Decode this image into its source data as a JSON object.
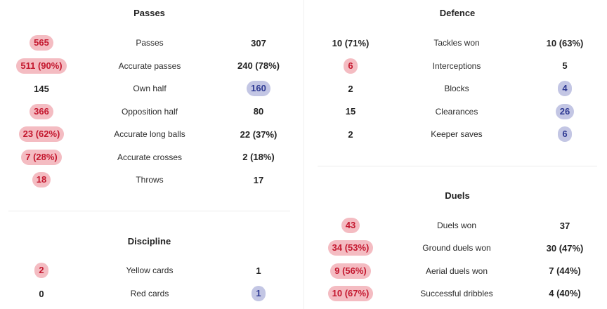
{
  "colors": {
    "home_pill_bg": "#f4bcc2",
    "home_pill_text": "#c4182f",
    "away_pill_bg": "#c3c6e4",
    "away_pill_text": "#2f3a93"
  },
  "passes": {
    "title": "Passes",
    "rows": [
      {
        "label": "Passes",
        "home": "565",
        "away": "307",
        "winner": "home"
      },
      {
        "label": "Accurate passes",
        "home": "511 (90%)",
        "away": "240 (78%)",
        "winner": "home"
      },
      {
        "label": "Own half",
        "home": "145",
        "away": "160",
        "winner": "away"
      },
      {
        "label": "Opposition half",
        "home": "366",
        "away": "80",
        "winner": "home"
      },
      {
        "label": "Accurate long balls",
        "home": "23 (62%)",
        "away": "22 (37%)",
        "winner": "home"
      },
      {
        "label": "Accurate crosses",
        "home": "7 (28%)",
        "away": "2 (18%)",
        "winner": "home"
      },
      {
        "label": "Throws",
        "home": "18",
        "away": "17",
        "winner": "home"
      }
    ]
  },
  "discipline": {
    "title": "Discipline",
    "rows": [
      {
        "label": "Yellow cards",
        "home": "2",
        "away": "1",
        "winner": "home"
      },
      {
        "label": "Red cards",
        "home": "0",
        "away": "1",
        "winner": "away"
      }
    ]
  },
  "defence": {
    "title": "Defence",
    "rows": [
      {
        "label": "Tackles won",
        "home": "10 (71%)",
        "away": "10 (63%)",
        "winner": "none"
      },
      {
        "label": "Interceptions",
        "home": "6",
        "away": "5",
        "winner": "home"
      },
      {
        "label": "Blocks",
        "home": "2",
        "away": "4",
        "winner": "away"
      },
      {
        "label": "Clearances",
        "home": "15",
        "away": "26",
        "winner": "away"
      },
      {
        "label": "Keeper saves",
        "home": "2",
        "away": "6",
        "winner": "away"
      }
    ]
  },
  "duels": {
    "title": "Duels",
    "rows": [
      {
        "label": "Duels won",
        "home": "43",
        "away": "37",
        "winner": "home"
      },
      {
        "label": "Ground duels won",
        "home": "34 (53%)",
        "away": "30 (47%)",
        "winner": "home"
      },
      {
        "label": "Aerial duels won",
        "home": "9 (56%)",
        "away": "7 (44%)",
        "winner": "home"
      },
      {
        "label": "Successful dribbles",
        "home": "10 (67%)",
        "away": "4 (40%)",
        "winner": "home"
      }
    ]
  }
}
